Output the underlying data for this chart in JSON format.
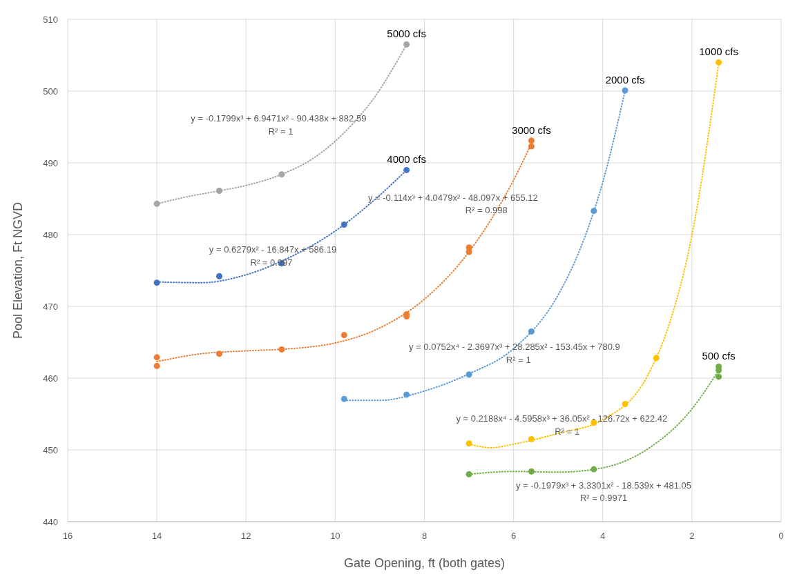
{
  "chart_data": {
    "type": "scatter",
    "xlabel": "Gate Opening, ft (both gates)",
    "ylabel": "Pool Elevation, Ft NGVD",
    "xlim": [
      16,
      0
    ],
    "xticks": [
      16,
      14,
      12,
      10,
      8,
      6,
      4,
      2,
      0
    ],
    "ylim": [
      440,
      510
    ],
    "yticks": [
      440,
      450,
      460,
      470,
      480,
      490,
      500,
      510
    ],
    "grid": true,
    "marker": "circle",
    "series": [
      {
        "name": "5000 cfs",
        "color": "#a5a5a5",
        "x": [
          14,
          12.6,
          11.2,
          8.4
        ],
        "values": [
          484.3,
          486.1,
          488.4,
          506.5
        ]
      },
      {
        "name": "4000 cfs",
        "color": "#4472c4",
        "x": [
          14,
          12.6,
          11.2,
          9.8,
          8.4
        ],
        "values": [
          473.3,
          474.2,
          476.0,
          481.4,
          489.0
        ]
      },
      {
        "name": "3000 cfs",
        "color": "#ed7d31",
        "x": [
          14,
          14,
          12.6,
          11.2,
          9.8,
          8.4,
          8.4,
          7,
          7,
          5.6,
          5.6
        ],
        "values": [
          462.9,
          461.7,
          463.4,
          464.0,
          466.0,
          468.9,
          468.6,
          478.2,
          477.6,
          493.1,
          492.3
        ]
      },
      {
        "name": "2000 cfs",
        "color": "#5b9bd5",
        "x": [
          9.8,
          8.4,
          7,
          5.6,
          4.2,
          3.5
        ],
        "values": [
          457.1,
          457.7,
          460.5,
          466.5,
          483.3,
          500.1
        ]
      },
      {
        "name": "1000 cfs",
        "color": "#ffc000",
        "x": [
          7,
          5.6,
          4.2,
          3.5,
          2.8,
          1.4
        ],
        "values": [
          450.9,
          451.5,
          453.8,
          456.4,
          462.8,
          504.0
        ]
      },
      {
        "name": "500 cfs",
        "color": "#70ad47",
        "x": [
          7,
          5.6,
          4.2,
          1.4,
          1.4,
          1.4
        ],
        "values": [
          446.6,
          447.0,
          447.3,
          461.6,
          461.1,
          460.2
        ]
      },
      {
        "type": "line",
        "marker": "none",
        "color": "#a5a5a5",
        "line_style": "dotted",
        "x": [
          14,
          13.3,
          12.6,
          11.9,
          11.2,
          10.5,
          9.8,
          9.1,
          8.4
        ],
        "values": [
          484.3,
          485.3,
          486.1,
          487.0,
          488.4,
          490.6,
          494.2,
          499.3,
          506.5
        ]
      },
      {
        "type": "line",
        "marker": "none",
        "color": "#4472c4",
        "line_style": "dotted",
        "x": [
          14,
          13,
          12,
          11,
          10,
          9,
          8.4
        ],
        "values": [
          473.4,
          473.3,
          474.4,
          476.9,
          480.5,
          485.5,
          489.0
        ]
      },
      {
        "type": "line",
        "marker": "none",
        "color": "#ed7d31",
        "line_style": "dotted",
        "x": [
          14,
          13,
          12,
          11,
          10,
          9,
          8,
          7,
          6,
          5.6
        ],
        "values": [
          462.3,
          463.4,
          463.8,
          464.1,
          464.9,
          467.0,
          471.0,
          477.6,
          487.6,
          492.7
        ]
      },
      {
        "type": "line",
        "marker": "none",
        "color": "#5b9bd5",
        "line_style": "dotted",
        "x": [
          9.8,
          9,
          8,
          7,
          6,
          5,
          4.5,
          4,
          3.5
        ],
        "values": [
          456.9,
          456.9,
          458.2,
          460.6,
          464.1,
          471.6,
          478.1,
          487.3,
          500.0
        ]
      },
      {
        "type": "line",
        "marker": "none",
        "color": "#ffc000",
        "line_style": "dotted",
        "x": [
          7,
          6.5,
          6,
          5,
          4,
          3,
          2.5,
          2,
          1.4
        ],
        "values": [
          450.8,
          450.3,
          450.8,
          452.3,
          454.2,
          460.3,
          467.7,
          479.9,
          503.9
        ]
      },
      {
        "type": "line",
        "marker": "none",
        "color": "#70ad47",
        "line_style": "dotted",
        "x": [
          7,
          6,
          5,
          4,
          3,
          2,
          1.4
        ],
        "values": [
          446.6,
          447.0,
          446.9,
          447.5,
          450.1,
          455.7,
          461.1
        ]
      }
    ],
    "annotations": [
      "y = -0.1799x³ + 6.9471x² - 90.438x + 882.59",
      "R² = 1",
      "y = 0.6279x² - 16.847x + 586.19",
      "R² = 0.997",
      "y = -0.114x³ + 4.0479x² - 48.097x + 655.12",
      "R² = 0.998",
      "y = 0.0752x⁴ - 2.3697x³ + 28.285x² - 153.45x + 780.9",
      "R² = 1",
      "y = 0.2188x⁴ - 4.5958x³ + 36.05x² - 126.72x + 622.42",
      "R² = 1",
      "y = -0.1979x³ + 3.3301x² - 18.539x + 481.05",
      "R² = 0.9971"
    ]
  }
}
